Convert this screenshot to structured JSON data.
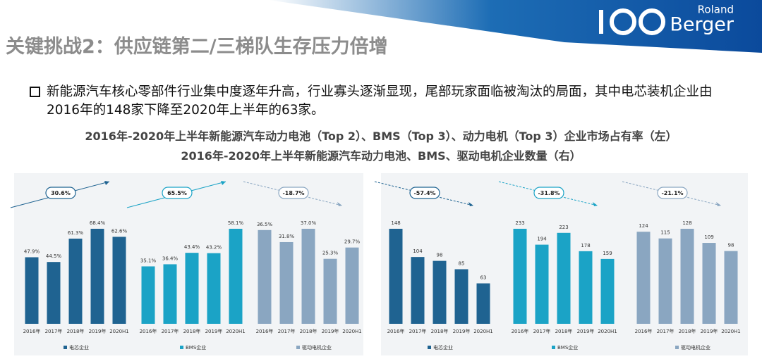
{
  "header": {
    "title": "关键挑战2：供应链第二/三梯队生存压力倍增",
    "logo_top": "Roland",
    "logo_bottom": "Berger"
  },
  "bullet": "新能源汽车核心零部件行业集中度逐年升高，行业寡头逐渐显现，尾部玩家面临被淘汰的局面，其中电芯装机企业由2016年的148家下降至2020年上半年的63家。",
  "chart_data": [
    {
      "type": "bar",
      "title": "2016年-2020年上半年新能源汽车动力电池（Top 2）、BMS（Top 3）、动力电机（Top 3）企业市场占有率（左）",
      "categories": [
        "2016年",
        "2017年",
        "2018年",
        "2019年",
        "2020H1"
      ],
      "series": [
        {
          "name": "电芯企业",
          "color": "#1f6391",
          "values": [
            47.9,
            44.5,
            61.3,
            68.4,
            62.6
          ],
          "value_labels": [
            "47.9%",
            "44.5%",
            "61.3%",
            "68.4%",
            "62.6%"
          ],
          "change": "30.6%"
        },
        {
          "name": "BMS企业",
          "color": "#1ba3c6",
          "values": [
            35.1,
            36.4,
            43.4,
            43.2,
            58.1
          ],
          "value_labels": [
            "35.1%",
            "36.4%",
            "43.4%",
            "43.2%",
            "58.1%"
          ],
          "change": "65.5%"
        },
        {
          "name": "驱动电机企业",
          "color": "#8aa6c1",
          "values": [
            36.5,
            31.8,
            37.0,
            25.3,
            29.7
          ],
          "value_labels": [
            "36.5%",
            "31.8%",
            "37.0%",
            "25.3%",
            "29.7%"
          ],
          "change": "-18.7%"
        }
      ]
    },
    {
      "type": "bar",
      "title": "2016年-2020年上半年新能源汽车动力电池、BMS、驱动电机企业数量（右）",
      "categories": [
        "2016年",
        "2017年",
        "2018年",
        "2019年",
        "2020H1"
      ],
      "series": [
        {
          "name": "电芯企业",
          "color": "#1f6391",
          "values": [
            148,
            104,
            98,
            85,
            63
          ],
          "change": "-57.4%"
        },
        {
          "name": "BMS企业",
          "color": "#1ba3c6",
          "values": [
            233,
            194,
            223,
            178,
            159
          ],
          "change": "-31.8%"
        },
        {
          "name": "驱动电机企业",
          "color": "#8aa6c1",
          "values": [
            124,
            115,
            128,
            109,
            98
          ],
          "change": "-21.1%"
        }
      ]
    }
  ]
}
